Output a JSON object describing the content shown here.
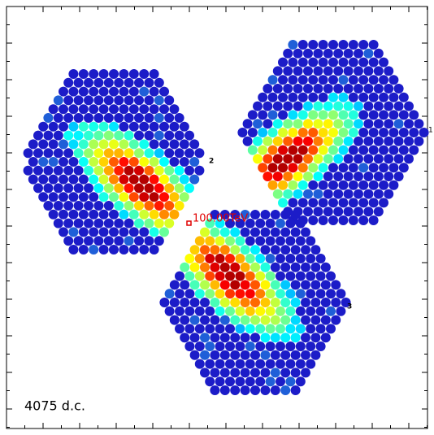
{
  "cameras": [
    {
      "label": "1"
    },
    {
      "label": "2"
    },
    {
      "label": "3"
    }
  ],
  "energy_label": "100.00TeV",
  "size_label": "4075 d.c."
}
